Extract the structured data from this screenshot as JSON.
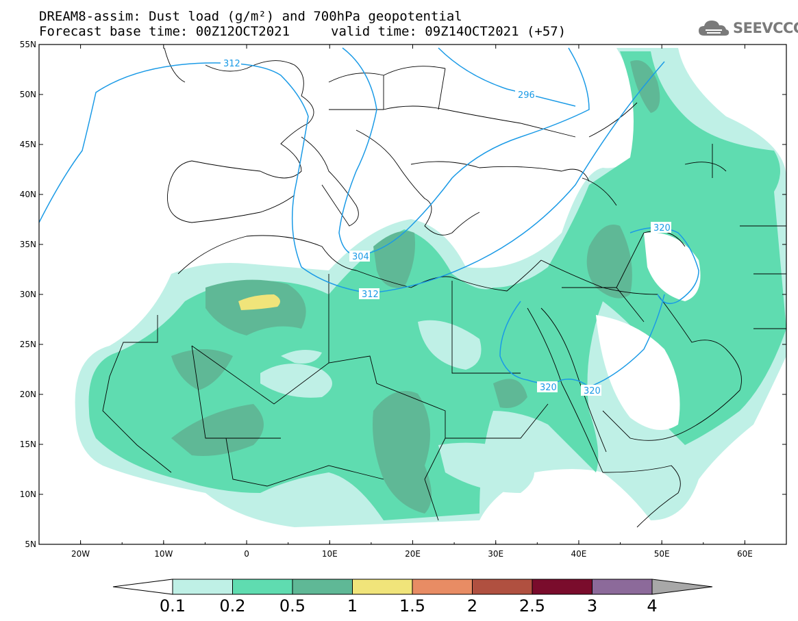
{
  "title": {
    "line1": "DREAM8-assim: Dust load (g/m²) and 700hPa geopotential",
    "line2_left": "Forecast base time: 00Z12OCT2021",
    "line2_right": "valid time: 09Z14OCT2021 (+57)"
  },
  "logo": {
    "text": "SEEVCCC",
    "icon": "cloud-icon"
  },
  "map": {
    "lon_range": [
      -25,
      65
    ],
    "lat_range": [
      5,
      55
    ],
    "lat_ticks": [
      "55N",
      "50N",
      "45N",
      "40N",
      "35N",
      "30N",
      "25N",
      "20N",
      "15N",
      "10N",
      "5N"
    ],
    "lon_ticks": [
      "20W",
      "10W",
      "0",
      "10E",
      "20E",
      "30E",
      "40E",
      "50E",
      "60E"
    ],
    "contour_labels": [
      "312",
      "296",
      "304",
      "312",
      "320",
      "320",
      "320"
    ]
  },
  "colorbar": {
    "labels": [
      "0.1",
      "0.2",
      "0.5",
      "1",
      "1.5",
      "2",
      "2.5",
      "3",
      "4"
    ],
    "colors": [
      "#ffffff",
      "#bff0e6",
      "#5fdcb0",
      "#5fb896",
      "#f0e47a",
      "#e88c64",
      "#b05040",
      "#7a0c2c",
      "#8c6a9a",
      "#a8a8a8"
    ]
  }
}
